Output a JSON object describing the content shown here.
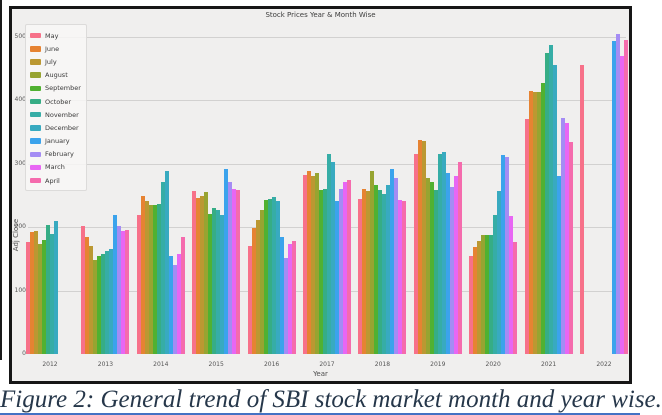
{
  "figure": {
    "caption": "Figure 2: General trend of SBI stock market month and year wise."
  },
  "colors": {
    "figure_border": "#161616",
    "figure_bg": "#f0efee",
    "grid": "#d2d1d0",
    "caption_text": "#26374a",
    "bottom_rule": "#4472c4",
    "left_edge_rule": "#1b1b1b"
  },
  "chart_data": {
    "type": "bar",
    "title": "Stock Prices Year & Month Wise",
    "xlabel": "Year",
    "ylabel": "Adj Close",
    "categories": [
      "2012",
      "2013",
      "2014",
      "2015",
      "2016",
      "2017",
      "2018",
      "2019",
      "2020",
      "2021",
      "2022"
    ],
    "yticks": [
      0,
      100,
      200,
      300,
      400,
      500
    ],
    "ylim": [
      0,
      520
    ],
    "grid": true,
    "legend_position": "upper left",
    "series": [
      {
        "name": "May",
        "color": "#f77189",
        "values": [
          176,
          202,
          219,
          257,
          171,
          283,
          244,
          316,
          155,
          370,
          456
        ]
      },
      {
        "name": "June",
        "color": "#e68332",
        "values": [
          193,
          184,
          249,
          246,
          199,
          288,
          261,
          338,
          168,
          415,
          null
        ]
      },
      {
        "name": "July",
        "color": "#bb9832",
        "values": [
          194,
          171,
          241,
          249,
          212,
          281,
          257,
          336,
          179,
          414,
          null
        ]
      },
      {
        "name": "August",
        "color": "#97a431",
        "values": [
          173,
          149,
          235,
          255,
          227,
          286,
          289,
          277,
          188,
          413,
          null
        ]
      },
      {
        "name": "September",
        "color": "#50b131",
        "values": [
          180,
          154,
          235,
          221,
          243,
          258,
          266,
          272,
          187,
          428,
          null
        ]
      },
      {
        "name": "October",
        "color": "#36ad85",
        "values": [
          204,
          157,
          236,
          230,
          244,
          260,
          258,
          258,
          188,
          474,
          null
        ]
      },
      {
        "name": "November",
        "color": "#36ada6",
        "values": [
          190,
          162,
          272,
          227,
          247,
          316,
          253,
          316,
          219,
          488,
          null
        ]
      },
      {
        "name": "December",
        "color": "#38aac0",
        "values": [
          210,
          165,
          288,
          219,
          241,
          303,
          267,
          319,
          257,
          456,
          null
        ]
      },
      {
        "name": "January",
        "color": "#3ba3ec",
        "values": [
          null,
          220,
          154,
          292,
          185,
          242,
          292,
          285,
          314,
          280,
          493
        ]
      },
      {
        "name": "February",
        "color": "#a48cf4",
        "values": [
          null,
          202,
          140,
          272,
          152,
          260,
          277,
          264,
          311,
          373,
          505
        ]
      },
      {
        "name": "March",
        "color": "#e866f4",
        "values": [
          null,
          194,
          157,
          260,
          174,
          272,
          243,
          280,
          218,
          365,
          470
        ]
      },
      {
        "name": "April",
        "color": "#f56bad",
        "values": [
          null,
          196,
          185,
          258,
          179,
          275,
          241,
          303,
          177,
          334,
          495
        ]
      }
    ]
  }
}
